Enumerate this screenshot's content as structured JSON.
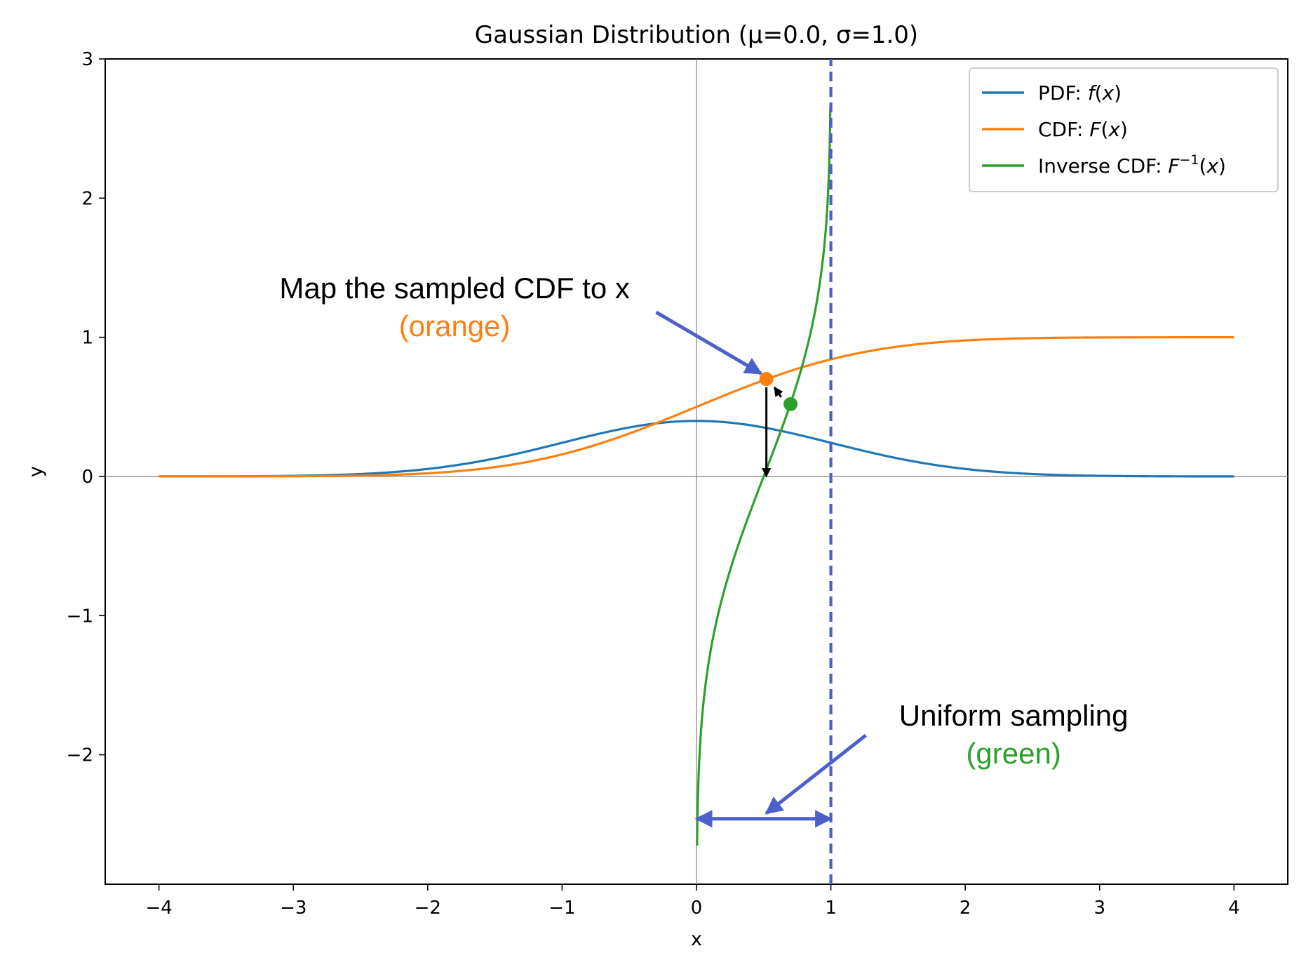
{
  "chart_data": {
    "type": "line",
    "title": "Gaussian Distribution (μ=0.0, σ=1.0)",
    "xlabel": "x",
    "ylabel": "y",
    "xlim": [
      -4.4,
      4.4
    ],
    "ylim": [
      -2.93,
      3.0
    ],
    "xticks": [
      -4,
      -3,
      -2,
      -1,
      0,
      1,
      2,
      3,
      4
    ],
    "yticks": [
      -2,
      -1,
      0,
      1,
      2,
      3
    ],
    "xtick_labels": [
      "−4",
      "−3",
      "−2",
      "−1",
      "0",
      "1",
      "2",
      "3",
      "4"
    ],
    "ytick_labels": [
      "−2",
      "−1",
      "0",
      "1",
      "2",
      "3"
    ],
    "grid": false,
    "legend_position": "top-right",
    "mu": 0.0,
    "sigma": 1.0,
    "series": [
      {
        "name": "PDF: f(x)",
        "name_plain": "PDF: ",
        "name_func": "f",
        "name_sup": "",
        "name_arg": "(x)",
        "function": "pdf",
        "color": "#1f77b4",
        "x_range": [
          -4,
          4
        ]
      },
      {
        "name": "CDF: F(x)",
        "name_plain": "CDF: ",
        "name_func": "F",
        "name_sup": "",
        "name_arg": "(x)",
        "function": "cdf",
        "color": "#ff7f0e",
        "x_range": [
          -4,
          4
        ]
      },
      {
        "name": "Inverse CDF: F^{-1}(x)",
        "name_plain": "Inverse CDF: ",
        "name_func": "F",
        "name_sup": "−1",
        "name_arg": "(x)",
        "function": "inverse_cdf",
        "color": "#2ca02c",
        "x_range": [
          0.004,
          0.996
        ]
      }
    ],
    "points": [
      {
        "name": "sampled-cdf-point",
        "x": 0.52,
        "y": 0.7,
        "color": "#ff7f0e"
      },
      {
        "name": "uniform-sample-point",
        "x": 0.7,
        "y": 0.52,
        "color": "#2ca02c"
      }
    ],
    "reference_lines": [
      {
        "name": "x-equals-1",
        "orientation": "vertical",
        "x": 1,
        "style": "dashed",
        "color": "#4c5fcc"
      }
    ],
    "arrows": [
      {
        "name": "drop-to-x-axis",
        "from": [
          0.52,
          0.64
        ],
        "to": [
          0.52,
          0.0
        ],
        "color": "#000000"
      },
      {
        "name": "reflect-to-cdf",
        "from": [
          0.63,
          0.57
        ],
        "to": [
          0.58,
          0.64
        ],
        "color": "#000000"
      },
      {
        "name": "uniform-range",
        "from": [
          0.0,
          -2.46
        ],
        "to": [
          1.0,
          -2.46
        ],
        "color": "#4c5fcc",
        "double_headed": true
      },
      {
        "name": "map-callout",
        "from": [
          -0.3,
          1.18
        ],
        "to": [
          0.48,
          0.74
        ],
        "color": "#4c5fcc"
      },
      {
        "name": "uniform-callout",
        "from": [
          1.26,
          -1.86
        ],
        "to": [
          0.52,
          -2.42
        ],
        "color": "#4c5fcc"
      }
    ],
    "annotations": [
      {
        "name": "map-annotation",
        "line1": "Map the sampled CDF to x",
        "line2": "(orange)",
        "line2_color": "#ff7f0e",
        "x": -1.8,
        "y": 1.35
      },
      {
        "name": "uniform-annotation",
        "line1": "Uniform sampling",
        "line2": "(green)",
        "line2_color": "#2ca02c",
        "x": 2.36,
        "y": -1.72
      }
    ]
  }
}
